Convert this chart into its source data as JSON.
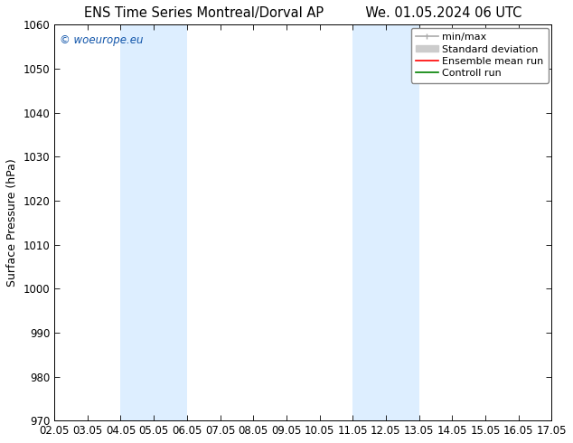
{
  "title_left": "ENS Time Series Montreal/Dorval AP",
  "title_right": "We. 01.05.2024 06 UTC",
  "ylabel": "Surface Pressure (hPa)",
  "watermark": "© woeurope.eu",
  "ylim": [
    970,
    1060
  ],
  "yticks": [
    970,
    980,
    990,
    1000,
    1010,
    1020,
    1030,
    1040,
    1050,
    1060
  ],
  "xtick_labels": [
    "02.05",
    "03.05",
    "04.05",
    "05.05",
    "06.05",
    "07.05",
    "08.05",
    "09.05",
    "10.05",
    "11.05",
    "12.05",
    "13.05",
    "14.05",
    "15.05",
    "16.05",
    "17.05"
  ],
  "shade_bands": [
    {
      "start": "04.05",
      "end": "06.05"
    },
    {
      "start": "11.05",
      "end": "13.05"
    }
  ],
  "shade_color": "#ddeeff",
  "legend_items": [
    {
      "label": "min/max",
      "color": "#aaaaaa",
      "lw": 1.2
    },
    {
      "label": "Standard deviation",
      "color": "#cccccc",
      "lw": 7
    },
    {
      "label": "Ensemble mean run",
      "color": "red",
      "lw": 1.2
    },
    {
      "label": "Controll run",
      "color": "green",
      "lw": 1.2
    }
  ],
  "bg_color": "#ffffff",
  "title_fontsize": 10.5,
  "ylabel_fontsize": 9,
  "tick_fontsize": 8.5,
  "watermark_fontsize": 8.5,
  "legend_fontsize": 8
}
